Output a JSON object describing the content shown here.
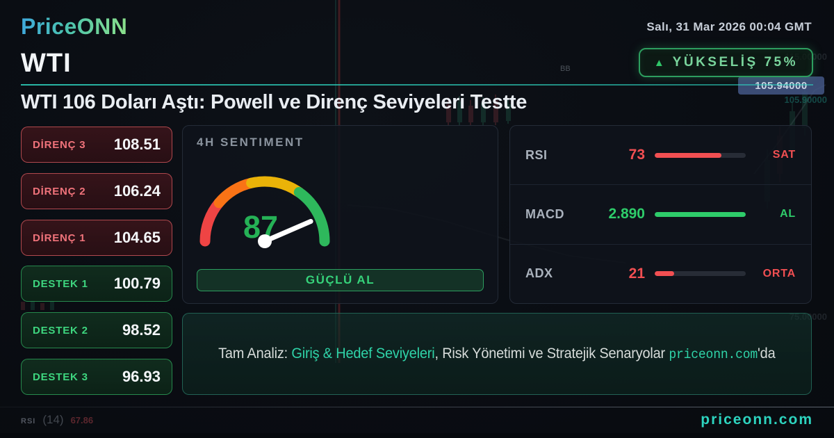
{
  "header": {
    "brand": "PriceONN",
    "datetime": "Salı, 31 Mar 2026 00:04 GMT",
    "symbol": "WTI",
    "trend_badge": {
      "icon": "up-triangle",
      "label": "YÜKSELİŞ 75%"
    },
    "headline": "WTI 106 Doları Aştı: Powell ve Direnç Seviyeleri Testte"
  },
  "levels": {
    "resistances": [
      {
        "label": "DİRENÇ 3",
        "value": "108.51"
      },
      {
        "label": "DİRENÇ 2",
        "value": "106.24"
      },
      {
        "label": "DİRENÇ 1",
        "value": "104.65"
      }
    ],
    "supports": [
      {
        "label": "DESTEK 1",
        "value": "100.79"
      },
      {
        "label": "DESTEK 2",
        "value": "98.52"
      },
      {
        "label": "DESTEK 3",
        "value": "96.93"
      }
    ]
  },
  "sentiment": {
    "title": "4H SENTIMENT",
    "score": 87,
    "signal": "GÜÇLÜ AL",
    "gauge_colors": {
      "low": "#ef4444",
      "mid_low": "#f97316",
      "mid_high": "#eab308",
      "high": "#2eb85c"
    }
  },
  "indicators": [
    {
      "name": "RSI",
      "value": "73",
      "tag": "SAT",
      "percent": 73,
      "color": "#f14f52"
    },
    {
      "name": "MACD",
      "value": "2.890",
      "tag": "AL",
      "percent": 100,
      "color": "#2ecc6a"
    },
    {
      "name": "ADX",
      "value": "21",
      "tag": "ORTA",
      "percent": 21,
      "color": "#f14f52"
    }
  ],
  "cta": {
    "prefix": "Tam Analiz: ",
    "highlight": "Giriş & Hedef Seviyeleri",
    "middle": ", Risk Yönetimi ve Stratejik Senaryolar ",
    "site": "priceonn.com",
    "suffix": "'da"
  },
  "footer": {
    "indicator_label": "RSI",
    "indicator_period": "(14)",
    "indicator_value": "67.86",
    "website": "priceonn.com"
  },
  "chart_overlay": {
    "price_tag": "105.94000",
    "ghost_price": "105.90000",
    "axis_label_top": "115.00000",
    "axis_label_bottom": "75.00000",
    "bb_label": "BB"
  },
  "colors": {
    "accent_green": "#22c55e",
    "accent_red": "#ef4444",
    "accent_teal": "#2dd4bf",
    "price_tag_bg": "#445887"
  }
}
